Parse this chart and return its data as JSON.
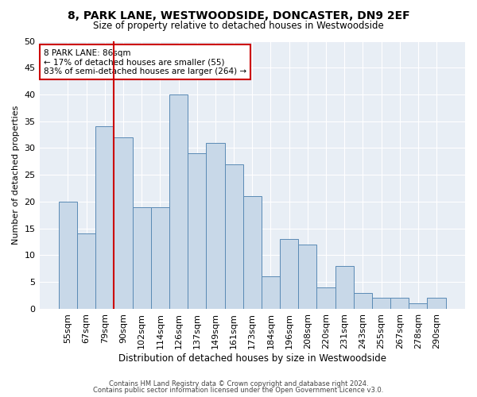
{
  "title": "8, PARK LANE, WESTWOODSIDE, DONCASTER, DN9 2EF",
  "subtitle": "Size of property relative to detached houses in Westwoodside",
  "xlabel": "Distribution of detached houses by size in Westwoodside",
  "ylabel": "Number of detached properties",
  "bar_color": "#c8d8e8",
  "bar_edge_color": "#5a8ab5",
  "bg_color": "#e8eef5",
  "annotation_text_line1": "8 PARK LANE: 86sqm",
  "annotation_text_line2": "← 17% of detached houses are smaller (55)",
  "annotation_text_line3": "83% of semi-detached houses are larger (264) →",
  "categories": [
    "55sqm",
    "67sqm",
    "79sqm",
    "90sqm",
    "102sqm",
    "114sqm",
    "126sqm",
    "137sqm",
    "149sqm",
    "161sqm",
    "173sqm",
    "184sqm",
    "196sqm",
    "208sqm",
    "220sqm",
    "231sqm",
    "243sqm",
    "255sqm",
    "267sqm",
    "278sqm",
    "290sqm"
  ],
  "values": [
    20,
    14,
    34,
    32,
    19,
    19,
    40,
    29,
    31,
    27,
    21,
    6,
    13,
    12,
    4,
    8,
    3,
    2,
    2,
    1,
    2
  ],
  "ylim": [
    0,
    50
  ],
  "yticks": [
    0,
    5,
    10,
    15,
    20,
    25,
    30,
    35,
    40,
    45,
    50
  ],
  "footer1": "Contains HM Land Registry data © Crown copyright and database right 2024.",
  "footer2": "Contains public sector information licensed under the Open Government Licence v3.0.",
  "bar_width": 1.0,
  "red_line_bar_index": 2
}
